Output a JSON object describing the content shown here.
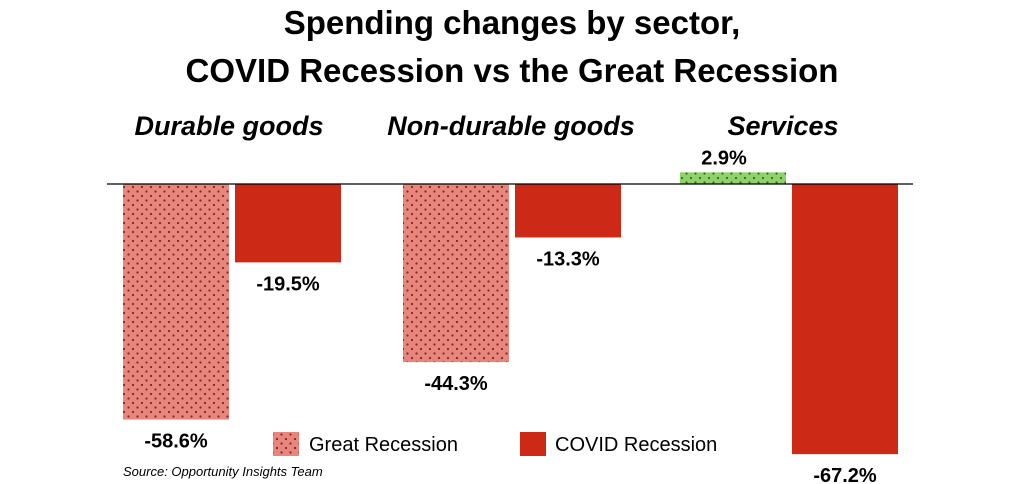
{
  "chart_data": {
    "type": "bar",
    "title": [
      "Spending changes by sector,",
      "COVID Recession vs the Great Recession"
    ],
    "categories": [
      "Durable goods",
      "Non-durable goods",
      "Services"
    ],
    "series": [
      {
        "name": "Great Recession",
        "values": [
          -58.6,
          -44.3,
          2.9
        ],
        "labels": [
          "-58.6%",
          "-44.3%",
          "2.9%"
        ],
        "color": "#e8857c",
        "positive_color": "#8fd16a",
        "pattern": "dotted"
      },
      {
        "name": "COVID Recession",
        "values": [
          -19.5,
          -13.3,
          -67.2
        ],
        "labels": [
          "-19.5%",
          "-13.3%",
          "-67.2%"
        ],
        "color": "#cc2a17",
        "pattern": "solid"
      }
    ],
    "ylim": [
      -67.2,
      2.9
    ],
    "grid": false,
    "legend_position": "bottom-center",
    "source": "Source: Opportunity Insights Team"
  }
}
